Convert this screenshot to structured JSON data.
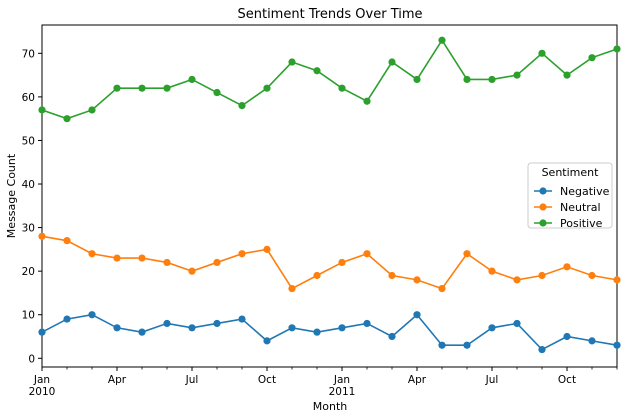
{
  "chart_data": {
    "type": "line",
    "title": "Sentiment Trends Over Time",
    "xlabel": "Month",
    "ylabel": "Message Count",
    "ylim": [
      -2,
      76.5
    ],
    "yticks": [
      0,
      10,
      20,
      30,
      40,
      50,
      60,
      70
    ],
    "x": [
      "2010-01",
      "2010-02",
      "2010-03",
      "2010-04",
      "2010-05",
      "2010-06",
      "2010-07",
      "2010-08",
      "2010-09",
      "2010-10",
      "2010-11",
      "2010-12",
      "2011-01",
      "2011-02",
      "2011-03",
      "2011-04",
      "2011-05",
      "2011-06",
      "2011-07",
      "2011-08",
      "2011-09",
      "2011-10",
      "2011-11",
      "2011-12"
    ],
    "xticks": [
      {
        "x": "2010-01",
        "label": "Jan",
        "sublabel": "2010"
      },
      {
        "x": "2010-04",
        "label": "Apr"
      },
      {
        "x": "2010-07",
        "label": "Jul"
      },
      {
        "x": "2010-10",
        "label": "Oct"
      },
      {
        "x": "2011-01",
        "label": "Jan",
        "sublabel": "2011"
      },
      {
        "x": "2011-04",
        "label": "Apr"
      },
      {
        "x": "2011-07",
        "label": "Jul"
      },
      {
        "x": "2011-10",
        "label": "Oct"
      }
    ],
    "legend": {
      "title": "Sentiment",
      "placement": "center-right"
    },
    "grid": false,
    "series": [
      {
        "name": "Negative",
        "color": "#1f77b4",
        "values": [
          6,
          9,
          10,
          7,
          6,
          8,
          7,
          8,
          9,
          4,
          7,
          6,
          7,
          8,
          5,
          10,
          3,
          3,
          7,
          8,
          2,
          5,
          4,
          3
        ]
      },
      {
        "name": "Neutral",
        "color": "#ff7f0e",
        "values": [
          28,
          27,
          24,
          23,
          23,
          22,
          20,
          22,
          24,
          25,
          16,
          19,
          22,
          24,
          19,
          18,
          16,
          24,
          20,
          18,
          19,
          21,
          19,
          18
        ]
      },
      {
        "name": "Positive",
        "color": "#2ca02c",
        "values": [
          57,
          55,
          57,
          62,
          62,
          62,
          64,
          61,
          58,
          62,
          68,
          66,
          62,
          59,
          68,
          64,
          73,
          64,
          64,
          65,
          70,
          65,
          69,
          71
        ]
      }
    ]
  }
}
